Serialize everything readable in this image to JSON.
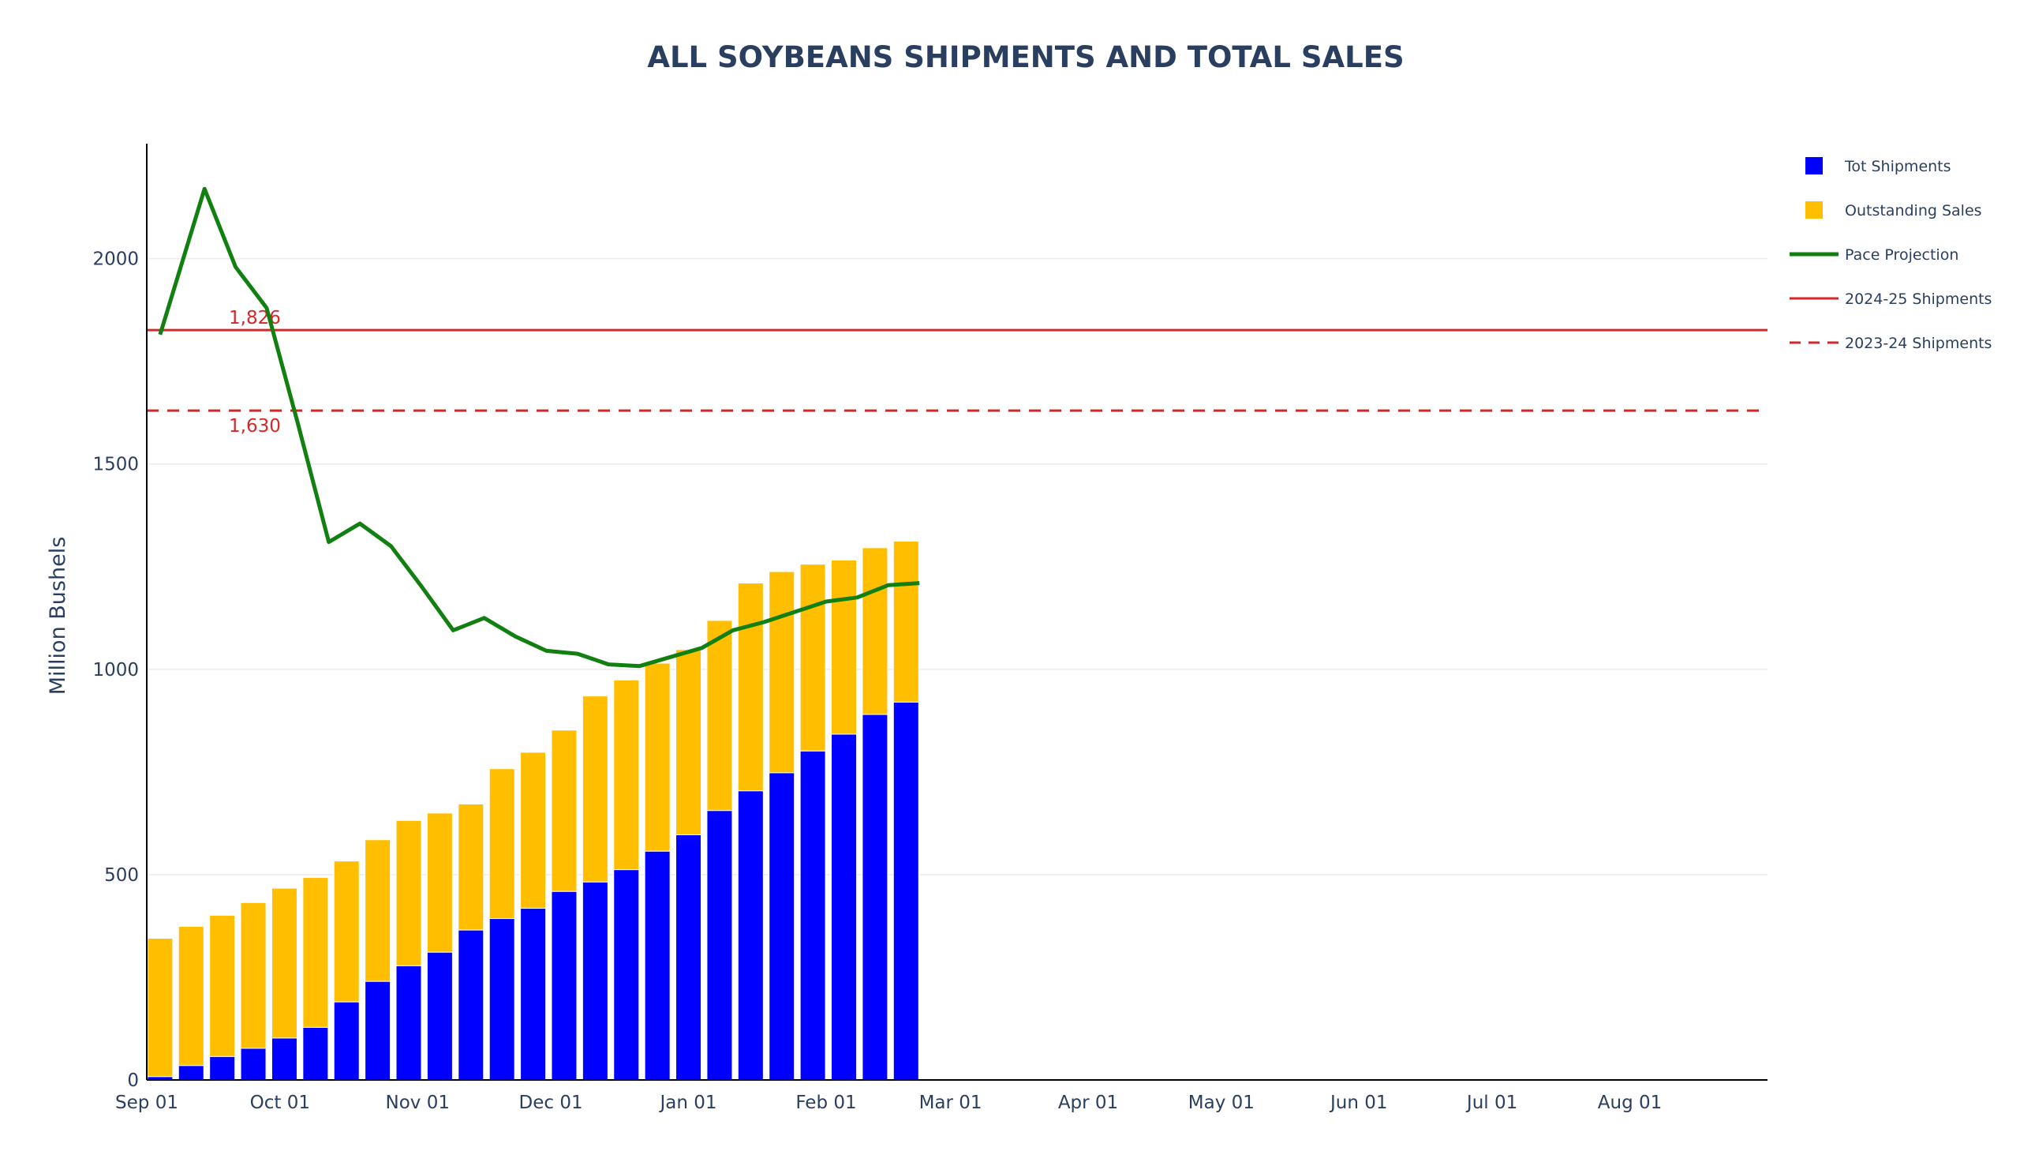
{
  "chart_data": {
    "type": "bar",
    "title": "ALL SOYBEANS SHIPMENTS AND TOTAL SALES",
    "ylabel": "Million Bushels",
    "xlabel": "",
    "ylim": [
      0,
      2280
    ],
    "xlim": [
      "2025-09-01",
      "2026-08-31"
    ],
    "barmode": "stack",
    "grid": true,
    "legend_position": "right",
    "x_ticks": [
      {
        "date": "2025-09-01",
        "label": "Sep 01"
      },
      {
        "date": "2025-10-01",
        "label": "Oct 01"
      },
      {
        "date": "2025-11-01",
        "label": "Nov 01"
      },
      {
        "date": "2025-12-01",
        "label": "Dec 01"
      },
      {
        "date": "2026-01-01",
        "label": "Jan 01"
      },
      {
        "date": "2026-02-01",
        "label": "Feb 01"
      },
      {
        "date": "2026-03-01",
        "label": "Mar 01"
      },
      {
        "date": "2026-04-01",
        "label": "Apr 01"
      },
      {
        "date": "2026-05-01",
        "label": "May 01"
      },
      {
        "date": "2026-06-01",
        "label": "Jun 01"
      },
      {
        "date": "2026-07-01",
        "label": "Jul 01"
      },
      {
        "date": "2026-08-01",
        "label": "Aug 01"
      }
    ],
    "y_ticks": [
      {
        "value": 0,
        "label": "0"
      },
      {
        "value": 500,
        "label": "500"
      },
      {
        "value": 1000,
        "label": "1000"
      },
      {
        "value": 1500,
        "label": "1500"
      },
      {
        "value": 2000,
        "label": "2000"
      }
    ],
    "x": [
      "2025-09-04",
      "2025-09-11",
      "2025-09-18",
      "2025-09-25",
      "2025-10-02",
      "2025-10-09",
      "2025-10-16",
      "2025-10-23",
      "2025-10-30",
      "2025-11-06",
      "2025-11-13",
      "2025-11-20",
      "2025-11-27",
      "2025-12-04",
      "2025-12-11",
      "2025-12-18",
      "2025-12-25",
      "2026-01-01",
      "2026-01-08",
      "2026-01-15",
      "2026-01-22",
      "2026-01-29",
      "2026-02-05",
      "2026-02-12",
      "2026-02-19"
    ],
    "series": [
      {
        "name": "Tot Shipments",
        "kind": "bar",
        "color": "#0000ff",
        "values": [
          8,
          35,
          57,
          77,
          102,
          128,
          190,
          240,
          278,
          311,
          365,
          393,
          418,
          459,
          482,
          512,
          557,
          597,
          656,
          704,
          748,
          801,
          842,
          890,
          920
        ]
      },
      {
        "name": "Outstanding Sales",
        "kind": "bar",
        "color": "#ffbf00",
        "values": [
          337,
          339,
          344,
          355,
          365,
          365,
          343,
          345,
          354,
          339,
          307,
          365,
          380,
          393,
          453,
          462,
          458,
          451,
          463,
          506,
          490,
          455,
          424,
          406,
          392
        ]
      },
      {
        "name": "Pace Projection",
        "kind": "line",
        "color": "#118011",
        "x": [
          "2025-09-04",
          "2025-09-14",
          "2025-09-21",
          "2025-09-28",
          "2025-10-05",
          "2025-10-12",
          "2025-10-19",
          "2025-10-26",
          "2025-11-02",
          "2025-11-09",
          "2025-11-16",
          "2025-11-23",
          "2025-11-30",
          "2025-12-07",
          "2025-12-14",
          "2025-12-21",
          "2025-12-28",
          "2026-01-04",
          "2026-01-11",
          "2026-01-18",
          "2026-01-25",
          "2026-02-01",
          "2026-02-08",
          "2026-02-15",
          "2026-02-22"
        ],
        "values": [
          1815,
          2170,
          1980,
          1880,
          1600,
          1310,
          1355,
          1300,
          1200,
          1095,
          1125,
          1080,
          1045,
          1038,
          1012,
          1008,
          1030,
          1052,
          1095,
          1115,
          1140,
          1165,
          1175,
          1205,
          1210
        ]
      }
    ],
    "reference_lines": [
      {
        "name": "2024-25 Shipments",
        "value": 1826,
        "label": "1,826",
        "color": "#d62728",
        "style": "solid"
      },
      {
        "name": "2023-24 Shipments",
        "value": 1630,
        "label": "1,630",
        "color": "#d62728",
        "style": "dashed"
      }
    ]
  }
}
